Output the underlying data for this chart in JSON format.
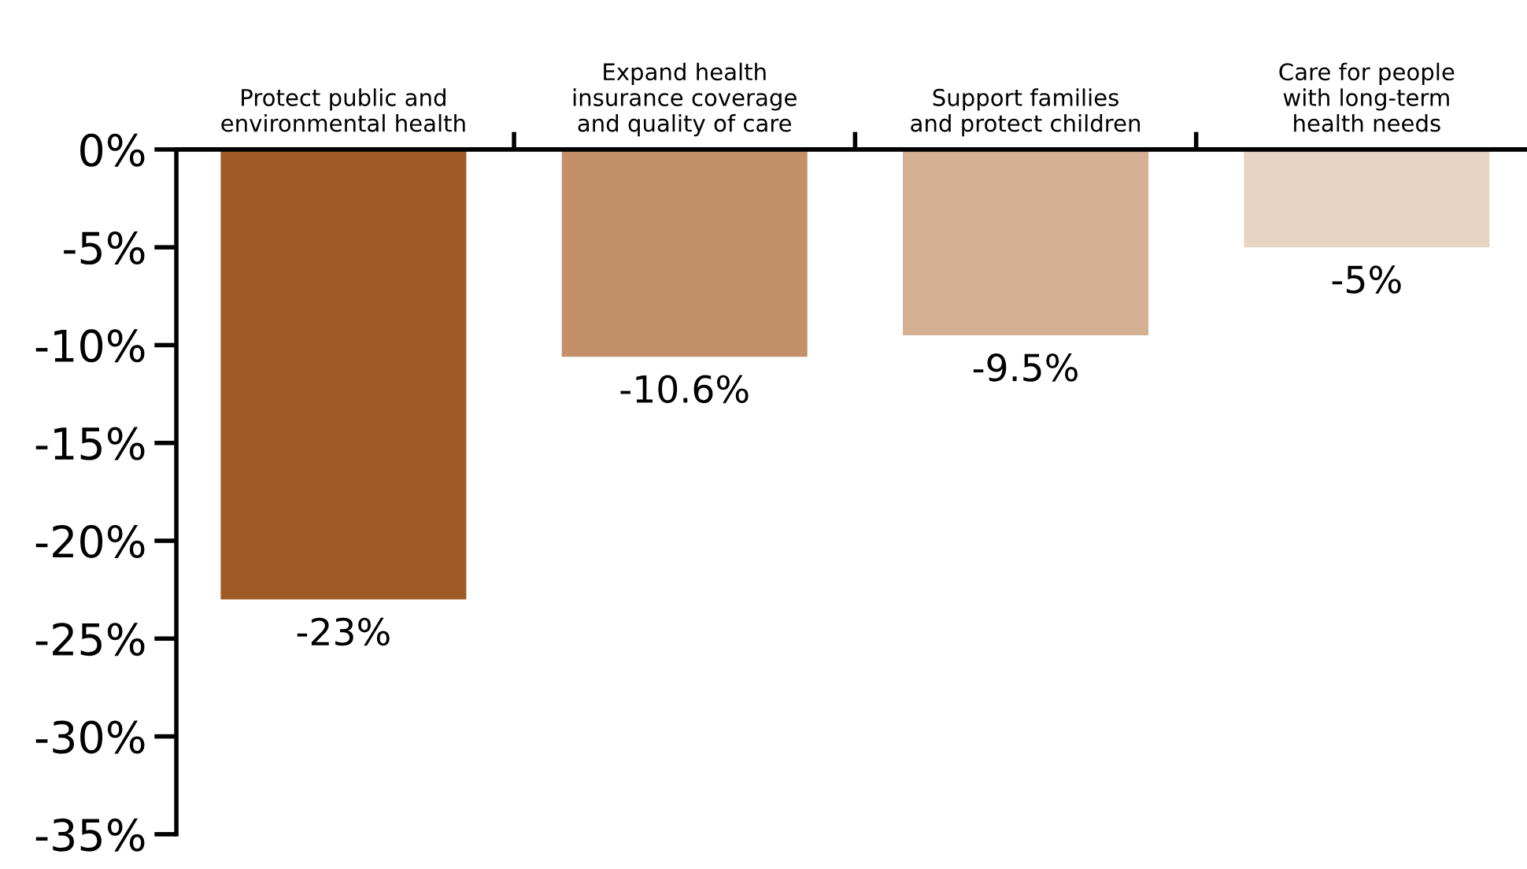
{
  "chart_data": {
    "type": "bar",
    "categories": [
      "Protect public and\nenvironmental health",
      "Expand health\ninsurance coverage\nand quality of care",
      "Support families\nand protect children",
      "Care for people\nwith long-term\nhealth needs"
    ],
    "values": [
      -23,
      -10.6,
      -9.5,
      -5
    ],
    "colors": [
      "#a05a26",
      "#c3906a",
      "#d4b193",
      "#e8d4c2"
    ],
    "value_labels": [
      "-23%",
      "-10.6%",
      "-9.5%",
      "-5%"
    ],
    "ylim": [
      -35,
      0
    ],
    "yticks": [
      {
        "value": 0,
        "label": "0%"
      },
      {
        "value": -5,
        "label": "-5%"
      },
      {
        "value": -10,
        "label": "-10%"
      },
      {
        "value": -15,
        "label": "-15%"
      },
      {
        "value": -20,
        "label": "-20%"
      },
      {
        "value": -25,
        "label": "-25%"
      },
      {
        "value": -30,
        "label": "-30%"
      },
      {
        "value": -35,
        "label": "-35%"
      }
    ],
    "grid": false,
    "legend": false
  }
}
